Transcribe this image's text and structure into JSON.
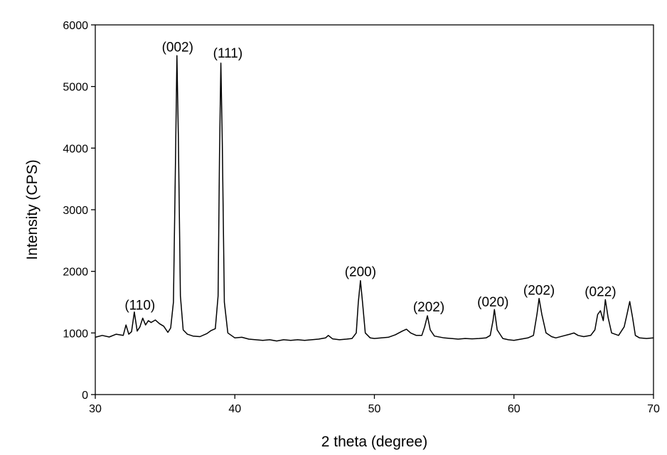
{
  "chart_data": {
    "type": "line",
    "title": "",
    "xlabel": "2 theta (degree)",
    "ylabel": "Intensity (CPS)",
    "xlim": [
      30,
      70
    ],
    "ylim": [
      0,
      6000
    ],
    "x_ticks": [
      30,
      40,
      50,
      60,
      70
    ],
    "x_tick_labels": [
      "30",
      "40",
      "50",
      "60",
      "70"
    ],
    "y_ticks": [
      0,
      1000,
      2000,
      3000,
      4000,
      5000,
      6000
    ],
    "y_tick_labels": [
      "0",
      "1000",
      "2000",
      "3000",
      "4000",
      "5000",
      "6000"
    ],
    "grid": false,
    "legend": "none",
    "line_color": "#000000",
    "series": [
      {
        "points": [
          [
            30.0,
            930
          ],
          [
            30.5,
            960
          ],
          [
            31.0,
            935
          ],
          [
            31.5,
            980
          ],
          [
            32.0,
            960
          ],
          [
            32.2,
            1130
          ],
          [
            32.4,
            980
          ],
          [
            32.6,
            1020
          ],
          [
            32.8,
            1340
          ],
          [
            33.0,
            1030
          ],
          [
            33.2,
            1100
          ],
          [
            33.4,
            1240
          ],
          [
            33.6,
            1130
          ],
          [
            33.8,
            1200
          ],
          [
            34.0,
            1170
          ],
          [
            34.3,
            1210
          ],
          [
            34.6,
            1150
          ],
          [
            34.9,
            1110
          ],
          [
            35.2,
            1010
          ],
          [
            35.4,
            1080
          ],
          [
            35.6,
            1500
          ],
          [
            35.75,
            3800
          ],
          [
            35.85,
            5500
          ],
          [
            35.95,
            4200
          ],
          [
            36.1,
            1600
          ],
          [
            36.3,
            1050
          ],
          [
            36.6,
            980
          ],
          [
            37.0,
            950
          ],
          [
            37.5,
            940
          ],
          [
            38.0,
            990
          ],
          [
            38.3,
            1040
          ],
          [
            38.6,
            1070
          ],
          [
            38.8,
            1600
          ],
          [
            38.9,
            3900
          ],
          [
            39.0,
            5380
          ],
          [
            39.1,
            4100
          ],
          [
            39.25,
            1500
          ],
          [
            39.5,
            1000
          ],
          [
            40.0,
            920
          ],
          [
            40.5,
            930
          ],
          [
            41.0,
            900
          ],
          [
            41.5,
            890
          ],
          [
            42.0,
            880
          ],
          [
            42.5,
            890
          ],
          [
            43.0,
            870
          ],
          [
            43.5,
            890
          ],
          [
            44.0,
            880
          ],
          [
            44.5,
            890
          ],
          [
            45.0,
            880
          ],
          [
            45.5,
            890
          ],
          [
            46.0,
            900
          ],
          [
            46.5,
            920
          ],
          [
            46.7,
            960
          ],
          [
            47.0,
            905
          ],
          [
            47.5,
            890
          ],
          [
            48.0,
            900
          ],
          [
            48.4,
            910
          ],
          [
            48.7,
            1000
          ],
          [
            48.85,
            1500
          ],
          [
            49.0,
            1850
          ],
          [
            49.15,
            1500
          ],
          [
            49.35,
            1000
          ],
          [
            49.7,
            920
          ],
          [
            50.0,
            910
          ],
          [
            50.5,
            920
          ],
          [
            51.0,
            930
          ],
          [
            51.5,
            970
          ],
          [
            52.0,
            1030
          ],
          [
            52.3,
            1060
          ],
          [
            52.6,
            1000
          ],
          [
            53.0,
            960
          ],
          [
            53.4,
            960
          ],
          [
            53.6,
            1100
          ],
          [
            53.8,
            1280
          ],
          [
            54.0,
            1050
          ],
          [
            54.3,
            950
          ],
          [
            55.0,
            920
          ],
          [
            55.5,
            910
          ],
          [
            56.0,
            900
          ],
          [
            56.5,
            910
          ],
          [
            57.0,
            905
          ],
          [
            57.5,
            910
          ],
          [
            58.0,
            920
          ],
          [
            58.3,
            960
          ],
          [
            58.5,
            1200
          ],
          [
            58.6,
            1380
          ],
          [
            58.8,
            1050
          ],
          [
            59.2,
            910
          ],
          [
            59.6,
            890
          ],
          [
            60.0,
            880
          ],
          [
            60.5,
            900
          ],
          [
            61.0,
            920
          ],
          [
            61.4,
            960
          ],
          [
            61.65,
            1300
          ],
          [
            61.8,
            1560
          ],
          [
            62.0,
            1300
          ],
          [
            62.3,
            1000
          ],
          [
            62.7,
            940
          ],
          [
            63.0,
            920
          ],
          [
            63.5,
            950
          ],
          [
            64.0,
            980
          ],
          [
            64.3,
            1000
          ],
          [
            64.6,
            960
          ],
          [
            65.0,
            940
          ],
          [
            65.5,
            960
          ],
          [
            65.8,
            1050
          ],
          [
            66.0,
            1300
          ],
          [
            66.2,
            1360
          ],
          [
            66.4,
            1200
          ],
          [
            66.55,
            1540
          ],
          [
            66.75,
            1250
          ],
          [
            67.0,
            1000
          ],
          [
            67.5,
            960
          ],
          [
            67.9,
            1100
          ],
          [
            68.1,
            1300
          ],
          [
            68.3,
            1510
          ],
          [
            68.5,
            1250
          ],
          [
            68.7,
            960
          ],
          [
            69.0,
            920
          ],
          [
            69.5,
            910
          ],
          [
            70.0,
            920
          ]
        ]
      }
    ],
    "annotations": [
      {
        "text": "(110)",
        "x": 33.2,
        "y": 1380
      },
      {
        "text": "(002)",
        "x": 35.9,
        "y": 5570
      },
      {
        "text": "(111)",
        "x": 39.5,
        "y": 5470
      },
      {
        "text": "(200)",
        "x": 49.0,
        "y": 1920
      },
      {
        "text": "(202)",
        "x": 53.9,
        "y": 1350
      },
      {
        "text": "(020)",
        "x": 58.5,
        "y": 1430
      },
      {
        "text": "(202)",
        "x": 61.8,
        "y": 1620
      },
      {
        "text": "(022)",
        "x": 66.2,
        "y": 1600
      }
    ]
  }
}
